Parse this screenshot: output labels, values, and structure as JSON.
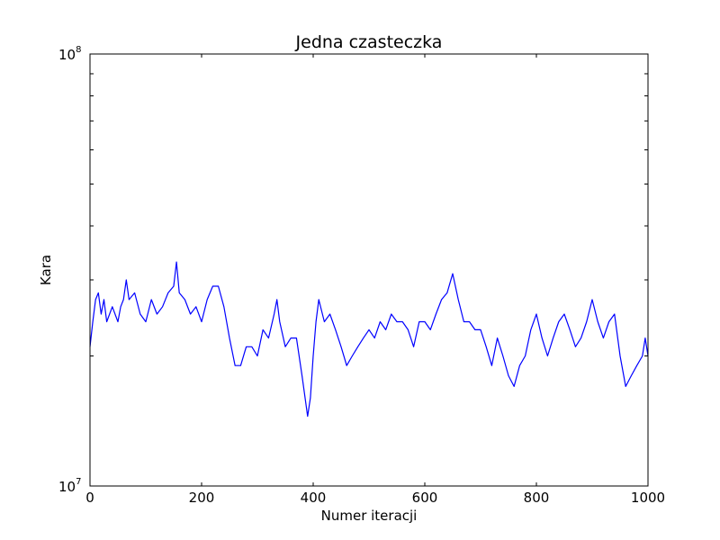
{
  "chart_data": {
    "type": "line",
    "title": "Jedna czasteczka",
    "xlabel": "Numer iteracji",
    "ylabel": "Kara",
    "xlim": [
      0,
      1000
    ],
    "ylim": [
      10000000,
      100000000
    ],
    "yscale": "log",
    "grid": false,
    "line_color": "#0000ff",
    "x_ticks": [
      {
        "value": 0,
        "label": "0"
      },
      {
        "value": 200,
        "label": "200"
      },
      {
        "value": 400,
        "label": "400"
      },
      {
        "value": 600,
        "label": "600"
      },
      {
        "value": 800,
        "label": "800"
      },
      {
        "value": 1000,
        "label": "1000"
      }
    ],
    "y_ticks": [
      {
        "value": 10000000,
        "base": "10",
        "exp": "7"
      },
      {
        "value": 100000000,
        "base": "10",
        "exp": "8"
      }
    ],
    "y_minor_ticks": [
      20000000,
      30000000,
      40000000,
      50000000,
      60000000,
      70000000,
      80000000,
      90000000
    ],
    "series": [
      {
        "points": [
          [
            0,
            21000000
          ],
          [
            5,
            24000000
          ],
          [
            10,
            27000000
          ],
          [
            15,
            28000000
          ],
          [
            20,
            25000000
          ],
          [
            25,
            27000000
          ],
          [
            30,
            24000000
          ],
          [
            40,
            26000000
          ],
          [
            50,
            24000000
          ],
          [
            55,
            26000000
          ],
          [
            60,
            27000000
          ],
          [
            65,
            30000000
          ],
          [
            70,
            27000000
          ],
          [
            80,
            28000000
          ],
          [
            90,
            25000000
          ],
          [
            100,
            24000000
          ],
          [
            110,
            27000000
          ],
          [
            120,
            25000000
          ],
          [
            130,
            26000000
          ],
          [
            140,
            28000000
          ],
          [
            150,
            29000000
          ],
          [
            155,
            33000000
          ],
          [
            160,
            28000000
          ],
          [
            170,
            27000000
          ],
          [
            180,
            25000000
          ],
          [
            190,
            26000000
          ],
          [
            200,
            24000000
          ],
          [
            210,
            27000000
          ],
          [
            220,
            29000000
          ],
          [
            230,
            29000000
          ],
          [
            240,
            26000000
          ],
          [
            250,
            22000000
          ],
          [
            260,
            19000000
          ],
          [
            270,
            19000000
          ],
          [
            280,
            21000000
          ],
          [
            290,
            21000000
          ],
          [
            300,
            20000000
          ],
          [
            310,
            23000000
          ],
          [
            320,
            22000000
          ],
          [
            330,
            25000000
          ],
          [
            335,
            27000000
          ],
          [
            340,
            24000000
          ],
          [
            350,
            21000000
          ],
          [
            360,
            22000000
          ],
          [
            370,
            22000000
          ],
          [
            380,
            18000000
          ],
          [
            390,
            14500000
          ],
          [
            395,
            16000000
          ],
          [
            400,
            20000000
          ],
          [
            405,
            24000000
          ],
          [
            410,
            27000000
          ],
          [
            420,
            24000000
          ],
          [
            430,
            25000000
          ],
          [
            440,
            23000000
          ],
          [
            450,
            21000000
          ],
          [
            460,
            19000000
          ],
          [
            470,
            20000000
          ],
          [
            480,
            21000000
          ],
          [
            490,
            22000000
          ],
          [
            500,
            23000000
          ],
          [
            510,
            22000000
          ],
          [
            520,
            24000000
          ],
          [
            530,
            23000000
          ],
          [
            540,
            25000000
          ],
          [
            550,
            24000000
          ],
          [
            560,
            24000000
          ],
          [
            570,
            23000000
          ],
          [
            580,
            21000000
          ],
          [
            590,
            24000000
          ],
          [
            600,
            24000000
          ],
          [
            610,
            23000000
          ],
          [
            620,
            25000000
          ],
          [
            630,
            27000000
          ],
          [
            640,
            28000000
          ],
          [
            650,
            31000000
          ],
          [
            660,
            27000000
          ],
          [
            670,
            24000000
          ],
          [
            680,
            24000000
          ],
          [
            690,
            23000000
          ],
          [
            700,
            23000000
          ],
          [
            710,
            21000000
          ],
          [
            720,
            19000000
          ],
          [
            730,
            22000000
          ],
          [
            740,
            20000000
          ],
          [
            750,
            18000000
          ],
          [
            760,
            17000000
          ],
          [
            770,
            19000000
          ],
          [
            780,
            20000000
          ],
          [
            790,
            23000000
          ],
          [
            800,
            25000000
          ],
          [
            810,
            22000000
          ],
          [
            820,
            20000000
          ],
          [
            830,
            22000000
          ],
          [
            840,
            24000000
          ],
          [
            850,
            25000000
          ],
          [
            860,
            23000000
          ],
          [
            870,
            21000000
          ],
          [
            880,
            22000000
          ],
          [
            890,
            24000000
          ],
          [
            900,
            27000000
          ],
          [
            910,
            24000000
          ],
          [
            920,
            22000000
          ],
          [
            930,
            24000000
          ],
          [
            940,
            25000000
          ],
          [
            950,
            20000000
          ],
          [
            960,
            17000000
          ],
          [
            970,
            18000000
          ],
          [
            980,
            19000000
          ],
          [
            990,
            20000000
          ],
          [
            995,
            22000000
          ],
          [
            1000,
            20000000
          ]
        ]
      }
    ]
  }
}
